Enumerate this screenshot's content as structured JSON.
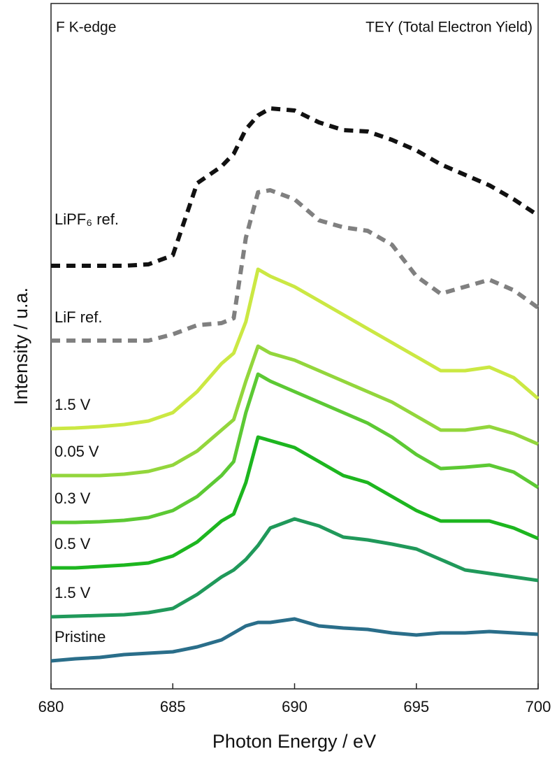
{
  "chart_data": {
    "type": "line",
    "annotations": [
      "F K-edge",
      "TEY (Total Electron Yield)"
    ],
    "xlabel": "Photon Energy / eV",
    "ylabel": "Intensity / u.a.",
    "xlim": [
      680,
      700
    ],
    "xticks": [
      680,
      685,
      690,
      695,
      700
    ],
    "ylim": [
      0,
      98
    ],
    "x": [
      680,
      681,
      682,
      683,
      684,
      685,
      686,
      687,
      687.5,
      688,
      688.5,
      689,
      690,
      691,
      692,
      693,
      694,
      695,
      696,
      697,
      698,
      699,
      700
    ],
    "series": [
      {
        "name": "LiPF₆ ref.",
        "color": "#111111",
        "style": "dashed",
        "values": [
          60.5,
          60.5,
          60.5,
          60.5,
          60.7,
          62,
          72.3,
          74.7,
          76.5,
          80,
          82,
          83,
          82.7,
          81,
          79.9,
          79.7,
          78.5,
          77,
          75,
          73.5,
          72,
          70,
          67.7
        ]
      },
      {
        "name": "LiF ref.",
        "color": "#808080",
        "style": "dashed",
        "values": [
          49.8,
          49.8,
          49.8,
          49.8,
          49.8,
          50.7,
          52,
          52.3,
          53,
          64.5,
          71,
          71.3,
          70,
          67,
          66,
          65.5,
          63.5,
          59,
          56.5,
          57.5,
          58.5,
          57,
          54.5
        ]
      },
      {
        "name": "1.5 V",
        "color": "#cbe843",
        "style": "solid",
        "values": [
          37.2,
          37.3,
          37.5,
          37.8,
          38.3,
          39.5,
          42.5,
          46.5,
          48,
          52.5,
          60,
          59,
          57.5,
          55.5,
          53.5,
          51.5,
          49.5,
          47.5,
          45.5,
          45.5,
          46,
          44.5,
          41.5
        ]
      },
      {
        "name": "0.05 V",
        "color": "#93d63c",
        "style": "solid",
        "values": [
          30.5,
          30.5,
          30.5,
          30.7,
          31.1,
          32,
          34,
          37,
          38.5,
          44,
          49,
          48,
          47,
          45.5,
          44,
          42.5,
          41,
          39,
          37,
          37,
          37.5,
          36.5,
          35
        ]
      },
      {
        "name": "0.3 V",
        "color": "#5cc934",
        "style": "solid",
        "values": [
          23.8,
          23.8,
          23.9,
          24.1,
          24.5,
          25.5,
          27.5,
          30.5,
          32.5,
          39.5,
          45,
          44,
          42.5,
          41,
          39.5,
          38,
          36,
          33.5,
          31.5,
          31.7,
          32,
          31,
          28.8
        ]
      },
      {
        "name": "0.5 V",
        "color": "#1db61f",
        "style": "solid",
        "values": [
          17.3,
          17.3,
          17.5,
          17.7,
          18,
          19,
          21,
          24,
          25,
          29.5,
          36,
          35.5,
          34.5,
          32.5,
          30.5,
          29.5,
          27.5,
          25.5,
          24,
          24,
          24,
          23,
          21.5
        ]
      },
      {
        "name": "1.5 V",
        "color": "#20995a",
        "style": "solid",
        "values": [
          10.3,
          10.4,
          10.5,
          10.6,
          10.9,
          11.5,
          13.5,
          16,
          17,
          18.5,
          20.5,
          23,
          24.3,
          23.3,
          21.7,
          21.3,
          20.7,
          20,
          18.5,
          17,
          16.5,
          16,
          15.5
        ]
      },
      {
        "name": "Pristine",
        "color": "#2a6e8a",
        "style": "solid",
        "values": [
          4,
          4.3,
          4.5,
          4.9,
          5.1,
          5.3,
          6,
          7,
          8,
          9,
          9.5,
          9.5,
          10,
          9,
          8.7,
          8.5,
          8,
          7.7,
          8,
          8,
          8.2,
          8,
          7.8
        ]
      }
    ]
  }
}
